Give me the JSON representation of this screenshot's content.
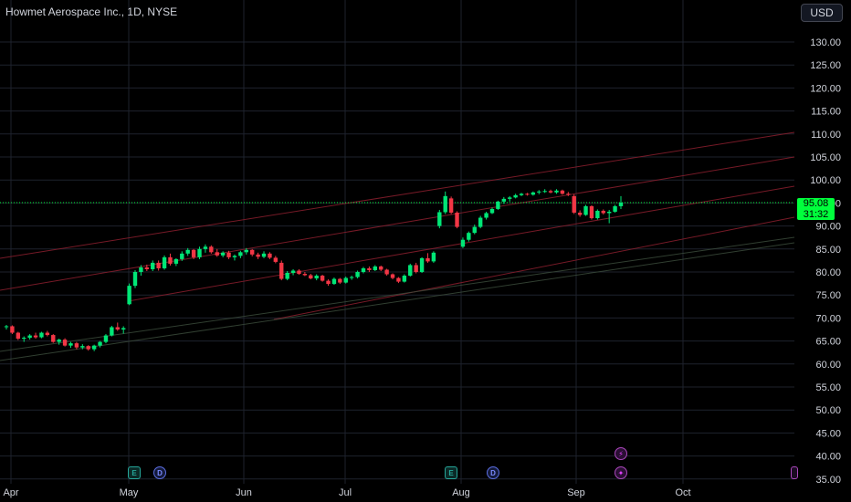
{
  "header": {
    "title": "Howmet Aerospace Inc., 1D, NYSE",
    "currency": "USD"
  },
  "price_label": {
    "price": "95.08",
    "countdown": "31:32"
  },
  "events": {
    "earnings": "E",
    "dividend": "D"
  },
  "colors": {
    "up": "#00e676",
    "down": "#f23645",
    "channel_upper": "#8b1f2e",
    "channel_lower": "#3a4a3a",
    "last_price": "#00ff3c",
    "grid": "#1e222d",
    "axis_text": "#d1d4dc"
  },
  "chart_data": {
    "type": "candlestick",
    "y_ticks": [
      "130.00",
      "125.00",
      "120.00",
      "115.00",
      "110.00",
      "105.00",
      "100.00",
      "95.00",
      "90.00",
      "85.00",
      "80.00",
      "75.00",
      "70.00",
      "65.00",
      "60.00",
      "55.00",
      "50.00",
      "45.00",
      "40.00",
      "35.00"
    ],
    "x_ticks": [
      "Apr",
      "May",
      "Jun",
      "Jul",
      "Aug",
      "Sep",
      "Oct"
    ],
    "ylim": [
      34,
      134
    ],
    "last_price": 95.08,
    "grid": true,
    "candles": [
      [
        68,
        68.5,
        67.5,
        68.2
      ],
      [
        68.2,
        68.4,
        66.5,
        66.8
      ],
      [
        66.8,
        67,
        65.2,
        65.5
      ],
      [
        65.5,
        66,
        64.8,
        65.7
      ],
      [
        65.7,
        66.5,
        65.3,
        66.2
      ],
      [
        66.2,
        66.8,
        65.5,
        65.8
      ],
      [
        65.8,
        67,
        65.6,
        66.8
      ],
      [
        66.8,
        67.2,
        66,
        66.3
      ],
      [
        66.3,
        66.5,
        64.6,
        64.8
      ],
      [
        64.8,
        65.5,
        64.2,
        65.3
      ],
      [
        65.3,
        65.6,
        63.8,
        64
      ],
      [
        64,
        64.8,
        63.5,
        64.5
      ],
      [
        64.5,
        64.8,
        63.2,
        63.6
      ],
      [
        63.6,
        64.3,
        63.2,
        63.9
      ],
      [
        63.9,
        64.1,
        62.9,
        63.2
      ],
      [
        63.2,
        64.2,
        62.8,
        64
      ],
      [
        64,
        65,
        63.6,
        64.8
      ],
      [
        64.8,
        66.5,
        64.5,
        66.2
      ],
      [
        66.2,
        68.3,
        66,
        68
      ],
      [
        68,
        69,
        67.2,
        67.5
      ],
      [
        67.5,
        68.2,
        66.6,
        67.8
      ],
      [
        73,
        77.5,
        72.8,
        77
      ],
      [
        77,
        80.4,
        76.5,
        80
      ],
      [
        80,
        81.5,
        79.2,
        81
      ],
      [
        81,
        81.6,
        80.2,
        80.6
      ],
      [
        80.6,
        82.5,
        80.2,
        82
      ],
      [
        82,
        82.5,
        80.3,
        80.8
      ],
      [
        80.8,
        83.6,
        80.5,
        83.2
      ],
      [
        83.2,
        84,
        81.4,
        81.8
      ],
      [
        81.8,
        83,
        81.3,
        82.8
      ],
      [
        82.8,
        84.5,
        82.4,
        84
      ],
      [
        84,
        85.2,
        83.5,
        84.8
      ],
      [
        84.8,
        85,
        82.8,
        83.2
      ],
      [
        83.2,
        85.5,
        82.8,
        85
      ],
      [
        85,
        86,
        84.2,
        85.5
      ],
      [
        85.5,
        85.8,
        84,
        84.3
      ],
      [
        84.3,
        85,
        83.3,
        83.6
      ],
      [
        83.6,
        84.5,
        83.2,
        84.2
      ],
      [
        84.2,
        84.6,
        82.8,
        83.2
      ],
      [
        83.2,
        83.8,
        82.5,
        83.5
      ],
      [
        83.5,
        84.6,
        83,
        84.3
      ],
      [
        84.3,
        85.2,
        83.8,
        84.8
      ],
      [
        84.8,
        85,
        83.4,
        83.8
      ],
      [
        83.8,
        84.2,
        82.8,
        83.3
      ],
      [
        83.3,
        84.5,
        83,
        84
      ],
      [
        84,
        84.3,
        82.8,
        83.1
      ],
      [
        83.1,
        83.5,
        81.9,
        82.2
      ],
      [
        82,
        82.5,
        78.2,
        78.5
      ],
      [
        78.5,
        80.2,
        78.2,
        79.8
      ],
      [
        79.8,
        80.6,
        79.3,
        80.3
      ],
      [
        80.3,
        80.6,
        79.4,
        79.6
      ],
      [
        79.6,
        80,
        79.1,
        79.3
      ],
      [
        79.3,
        79.6,
        78.4,
        78.6
      ],
      [
        78.6,
        79.5,
        78.2,
        79.2
      ],
      [
        79.2,
        79.4,
        77.9,
        78.1
      ],
      [
        78.1,
        78.4,
        77,
        77.4
      ],
      [
        77.4,
        78.8,
        77.2,
        78.5
      ],
      [
        78.5,
        78.7,
        77.4,
        77.7
      ],
      [
        77.7,
        79,
        77.5,
        78.7
      ],
      [
        78.7,
        79.2,
        78.3,
        78.9
      ],
      [
        78.9,
        80.3,
        78.6,
        80
      ],
      [
        80,
        81.1,
        79.7,
        80.8
      ],
      [
        80.8,
        81.2,
        80,
        80.4
      ],
      [
        80.4,
        81.5,
        80.2,
        81.2
      ],
      [
        81.2,
        81.4,
        80.2,
        80.5
      ],
      [
        80.5,
        80.7,
        79.2,
        79.5
      ],
      [
        79.5,
        79.7,
        78.4,
        78.7
      ],
      [
        78.7,
        78.9,
        77.6,
        77.9
      ],
      [
        77.9,
        79.5,
        77.7,
        79.2
      ],
      [
        79.2,
        81.8,
        79,
        81.5
      ],
      [
        81.5,
        82,
        79.7,
        80
      ],
      [
        80,
        83.2,
        79.8,
        83
      ],
      [
        83,
        84.1,
        82,
        82.3
      ],
      [
        82.3,
        84.5,
        82,
        84.2
      ],
      [
        90,
        93.5,
        89.5,
        93
      ],
      [
        93,
        97.5,
        92.6,
        96.5
      ],
      [
        96,
        96.4,
        92.6,
        92.9
      ],
      [
        92.9,
        93.2,
        89.5,
        89.8
      ],
      [
        85.5,
        87.5,
        85.2,
        87
      ],
      [
        87,
        88.8,
        86.6,
        88.5
      ],
      [
        88.5,
        90.3,
        88.2,
        89.8
      ],
      [
        89.8,
        92.2,
        89.5,
        91.8
      ],
      [
        91.8,
        93.1,
        91.4,
        92.8
      ],
      [
        92.8,
        94,
        92.6,
        93.7
      ],
      [
        93.7,
        95.5,
        93.5,
        95.3
      ],
      [
        95.3,
        96.3,
        94.8,
        95.9
      ],
      [
        95.9,
        96.5,
        95.3,
        96.2
      ],
      [
        96.2,
        97,
        96,
        96.7
      ],
      [
        96.7,
        97.2,
        96.5,
        97
      ],
      [
        97,
        97.2,
        96.6,
        96.8
      ],
      [
        96.8,
        97.5,
        96.6,
        97.3
      ],
      [
        97.3,
        97.8,
        96.9,
        97.5
      ],
      [
        97.5,
        98,
        97.2,
        97.6
      ],
      [
        97.6,
        97.9,
        97.1,
        97.3
      ],
      [
        97.3,
        98,
        97,
        97.7
      ],
      [
        97.7,
        97.9,
        96.8,
        97
      ],
      [
        97,
        97.4,
        96.5,
        96.8
      ],
      [
        96.5,
        96.9,
        92.6,
        92.9
      ],
      [
        92.9,
        93.4,
        92,
        92.4
      ],
      [
        92.4,
        94.6,
        92.2,
        94.3
      ],
      [
        94.3,
        94.5,
        91.4,
        91.7
      ],
      [
        91.7,
        93.6,
        91.4,
        93.3
      ],
      [
        93.3,
        93.6,
        92.5,
        92.8
      ],
      [
        92.8,
        93.5,
        90.6,
        93.1
      ],
      [
        93.1,
        94.6,
        92.9,
        94.3
      ],
      [
        94.3,
        96.5,
        93.7,
        95.08
      ]
    ]
  }
}
